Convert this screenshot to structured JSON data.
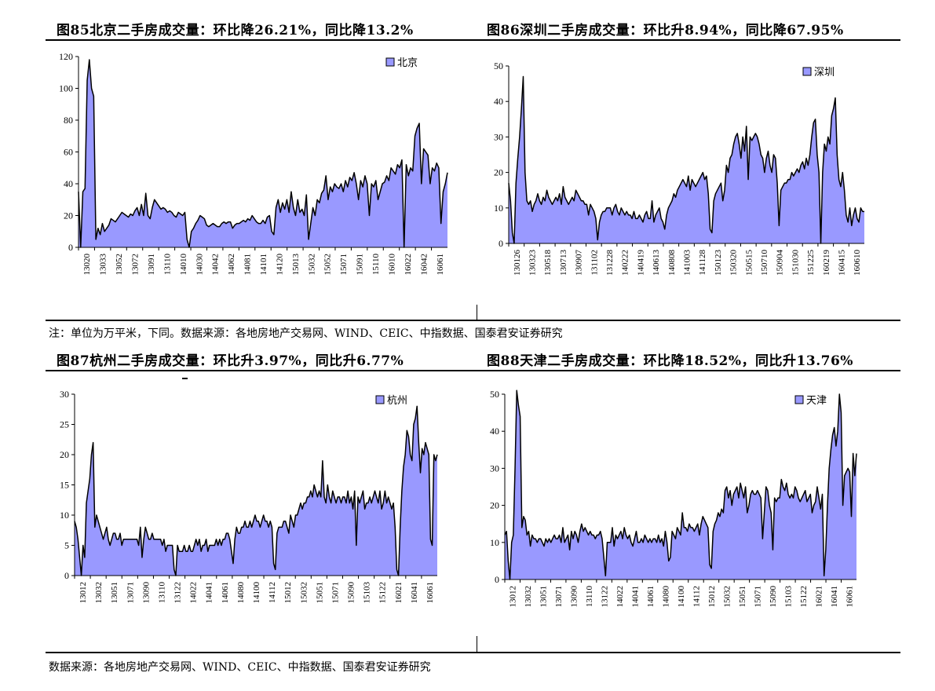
{
  "titles": {
    "c85": "图85北京二手房成交量：环比降26.21%，同比降13.2%",
    "c86": "图86深圳二手房成交量：环比升8.94%，同比降67.95%",
    "c87": "图87杭州二手房成交量：环比升3.97%，同比升6.77%",
    "c88": "图88天津二手房成交量：环比降18.52%，同比升13.76%"
  },
  "notes": {
    "top": "注：单位为万平米，下同。数据来源：各地房地产交易网、WIND、CEIC、中指数据、国泰君安证券研究",
    "bottom": "数据来源：各地房地产交易网、WIND、CEIC、中指数据、国泰君安证券研究"
  },
  "colors": {
    "fill": "#9999ff",
    "stroke": "#000000"
  },
  "chart_data": [
    {
      "id": "c85",
      "type": "area",
      "legend": "北京",
      "legend_position": "top-right",
      "ylim": [
        0,
        120
      ],
      "yticks": [
        0,
        20,
        40,
        60,
        80,
        100,
        120
      ],
      "xticks": [
        "13020",
        "13033",
        "13052",
        "13072",
        "13091",
        "13110",
        "14010",
        "14030",
        "14042",
        "14062",
        "14081",
        "14101",
        "14120",
        "15013",
        "15032",
        "15052",
        "15071",
        "15091",
        "15110",
        "16010",
        "16022",
        "16042",
        "16061"
      ],
      "values": [
        35,
        0,
        35,
        37,
        105,
        118,
        100,
        95,
        5,
        12,
        8,
        15,
        10,
        12,
        14,
        18,
        17,
        16,
        18,
        20,
        22,
        21,
        20,
        19,
        21,
        20,
        23,
        25,
        20,
        27,
        20,
        34,
        20,
        18,
        25,
        30,
        28,
        26,
        24,
        25,
        24,
        22,
        23,
        22,
        20,
        19,
        22,
        21,
        20,
        22,
        5,
        0,
        10,
        12,
        15,
        17,
        20,
        19,
        18,
        14,
        13,
        14,
        15,
        14,
        13,
        13,
        15,
        16,
        15,
        16,
        16,
        12,
        14,
        15,
        15,
        16,
        17,
        16,
        18,
        17,
        20,
        18,
        16,
        15,
        15,
        17,
        15,
        19,
        20,
        10,
        8,
        25,
        30,
        22,
        28,
        24,
        30,
        22,
        35,
        25,
        20,
        30,
        22,
        24,
        20,
        33,
        5,
        15,
        25,
        20,
        30,
        28,
        34,
        36,
        45,
        30,
        38,
        35,
        40,
        38,
        37,
        40,
        35,
        42,
        38,
        44,
        42,
        47,
        40,
        30,
        42,
        38,
        45,
        40,
        20,
        40,
        38,
        42,
        30,
        35,
        40,
        41,
        45,
        42,
        50,
        48,
        46,
        52,
        50,
        55,
        0,
        52,
        45,
        50,
        48,
        70,
        75,
        78,
        40,
        62,
        60,
        58,
        40,
        50,
        48,
        53,
        50,
        15,
        35,
        40,
        47
      ]
    },
    {
      "id": "c86",
      "type": "area",
      "legend": "深圳",
      "legend_position": "top-right",
      "ylim": [
        0,
        50
      ],
      "yticks": [
        0,
        10,
        20,
        30,
        40,
        50
      ],
      "xticks": [
        "130126",
        "130323",
        "130518",
        "130713",
        "130907",
        "131102",
        "131228",
        "140222",
        "140419",
        "140613",
        "140808",
        "141003",
        "141128",
        "150123",
        "150320",
        "150515",
        "150710",
        "150904",
        "151030",
        "151225",
        "160219",
        "160415",
        "160610"
      ],
      "values": [
        17,
        12,
        3,
        0,
        17,
        24,
        30,
        38,
        47,
        20,
        12,
        11,
        12,
        9,
        11,
        12,
        14,
        12,
        11,
        13,
        12,
        15,
        13,
        12,
        11,
        12,
        13,
        12,
        14,
        11,
        16,
        13,
        12,
        11,
        12,
        13,
        12,
        15,
        14,
        13,
        12,
        12,
        11,
        11,
        8,
        11,
        10,
        9,
        7,
        1,
        6,
        8,
        9,
        9,
        10,
        10,
        10,
        8,
        10,
        11,
        9,
        8,
        10,
        9,
        8,
        9,
        8,
        8,
        7,
        9,
        7,
        7,
        8,
        7,
        6,
        8,
        9,
        7,
        7,
        12,
        6,
        8,
        9,
        10,
        7,
        6,
        4,
        8,
        10,
        11,
        12,
        14,
        13,
        15,
        16,
        17,
        18,
        17,
        16,
        19,
        15,
        18,
        17,
        16,
        17,
        18,
        19,
        20,
        18,
        19,
        14,
        4,
        3,
        12,
        14,
        15,
        16,
        17,
        12,
        15,
        22,
        20,
        24,
        25,
        28,
        30,
        31,
        28,
        24,
        30,
        26,
        33,
        18,
        30,
        29,
        30,
        31,
        30,
        28,
        25,
        24,
        20,
        24,
        26,
        22,
        20,
        25,
        24,
        17,
        5,
        15,
        16,
        17,
        17,
        18,
        18,
        20,
        19,
        20,
        21,
        20,
        22,
        23,
        21,
        24,
        22,
        25,
        30,
        34,
        35,
        25,
        20,
        0,
        20,
        28,
        26,
        30,
        28,
        36,
        38,
        41,
        25,
        18,
        16,
        20,
        15,
        8,
        6,
        10,
        5,
        8,
        10,
        7,
        6,
        10,
        9,
        9
      ]
    },
    {
      "id": "c87",
      "type": "area",
      "legend": "杭州",
      "legend_position": "top-right",
      "ylim": [
        0,
        30
      ],
      "yticks": [
        0,
        5,
        10,
        15,
        20,
        25,
        30
      ],
      "xticks": [
        "13012",
        "13032",
        "13051",
        "13071",
        "13090",
        "13110",
        "13122",
        "14022",
        "14041",
        "14061",
        "14080",
        "14100",
        "14112",
        "15012",
        "15032",
        "15051",
        "15071",
        "15090",
        "15103",
        "15122",
        "16021",
        "16041",
        "16061"
      ],
      "values": [
        9,
        8,
        6,
        3,
        0,
        5,
        3,
        12,
        14,
        16,
        20,
        22,
        8,
        10,
        9,
        8,
        7,
        6,
        7,
        8,
        6,
        5,
        6,
        7,
        7,
        6,
        6,
        7,
        5,
        6,
        6,
        6,
        6,
        6,
        6,
        6,
        6,
        6,
        5,
        8,
        3,
        6,
        8,
        7,
        6,
        6,
        7,
        6,
        6,
        6,
        6,
        6,
        5,
        6,
        4,
        5,
        5,
        5,
        5,
        1,
        0,
        5,
        4,
        4,
        4,
        5,
        4,
        4,
        5,
        4,
        4,
        5,
        6,
        5,
        6,
        4,
        5,
        5,
        6,
        4,
        5,
        5,
        5,
        5,
        6,
        5,
        6,
        5,
        6,
        6,
        7,
        7,
        6,
        4,
        2,
        6,
        8,
        7,
        7,
        8,
        8,
        9,
        8,
        8,
        9,
        8,
        9,
        10,
        9,
        9,
        8,
        9,
        10,
        9,
        9,
        8,
        9,
        8,
        2,
        1,
        7,
        8,
        8,
        8,
        9,
        9,
        8,
        7,
        10,
        9,
        8,
        10,
        10,
        11,
        12,
        11,
        12,
        12,
        13,
        13,
        14,
        13,
        15,
        14,
        13,
        14,
        13,
        19,
        13,
        12,
        15,
        13,
        12,
        14,
        13,
        12,
        13,
        13,
        12,
        13,
        13,
        12,
        14,
        12,
        13,
        11,
        14,
        5,
        13,
        12,
        13,
        14,
        11,
        12,
        12,
        13,
        12,
        13,
        14,
        13,
        12,
        14,
        11,
        12,
        14,
        12,
        13,
        12,
        11,
        12,
        8,
        1,
        0,
        8,
        14,
        18,
        20,
        24,
        23,
        20,
        19,
        25,
        26,
        28,
        22,
        17,
        21,
        20,
        22,
        21,
        20,
        6,
        5,
        20,
        19,
        20
      ]
    },
    {
      "id": "c88",
      "type": "area",
      "legend": "天津",
      "legend_position": "top-right",
      "ylim": [
        0,
        50
      ],
      "yticks": [
        0,
        10,
        20,
        30,
        40,
        50
      ],
      "xticks": [
        "13012",
        "13032",
        "13051",
        "13071",
        "13090",
        "13110",
        "13122",
        "14022",
        "14041",
        "14061",
        "14080",
        "14100",
        "14112",
        "15012",
        "15032",
        "15051",
        "15071",
        "15090",
        "15103",
        "15122",
        "16021",
        "16041",
        "16061"
      ],
      "values": [
        12,
        13,
        5,
        0,
        10,
        12,
        30,
        51,
        47,
        44,
        14,
        17,
        16,
        12,
        13,
        9,
        12,
        11,
        11,
        10,
        11,
        11,
        10,
        9,
        11,
        10,
        11,
        10,
        11,
        12,
        11,
        11,
        12,
        10,
        14,
        10,
        11,
        12,
        8,
        13,
        11,
        13,
        12,
        10,
        13,
        15,
        13,
        14,
        13,
        12,
        13,
        12,
        12,
        11,
        12,
        12,
        13,
        11,
        6,
        1,
        10,
        10,
        10,
        14,
        9,
        12,
        11,
        12,
        13,
        11,
        14,
        12,
        11,
        12,
        10,
        9,
        11,
        13,
        10,
        10,
        11,
        10,
        12,
        11,
        10,
        11,
        10,
        11,
        11,
        10,
        12,
        10,
        11,
        9,
        13,
        10,
        5,
        6,
        13,
        12,
        11,
        14,
        13,
        12,
        18,
        14,
        14,
        13,
        15,
        14,
        14,
        13,
        14,
        15,
        12,
        15,
        17,
        16,
        15,
        14,
        4,
        3,
        13,
        15,
        16,
        18,
        17,
        19,
        18,
        24,
        25,
        22,
        24,
        20,
        23,
        24,
        25,
        22,
        26,
        24,
        22,
        25,
        18,
        20,
        23,
        24,
        23,
        23,
        24,
        23,
        22,
        11,
        18,
        25,
        24,
        20,
        18,
        8,
        22,
        21,
        22,
        22,
        27,
        25,
        24,
        26,
        23,
        22,
        23,
        22,
        25,
        24,
        22,
        21,
        22,
        23,
        24,
        21,
        22,
        23,
        18,
        20,
        21,
        25,
        22,
        19,
        23,
        1,
        8,
        20,
        30,
        35,
        39,
        41,
        36,
        40,
        50,
        45,
        20,
        28,
        29,
        30,
        29,
        17,
        34,
        28,
        34
      ]
    }
  ]
}
